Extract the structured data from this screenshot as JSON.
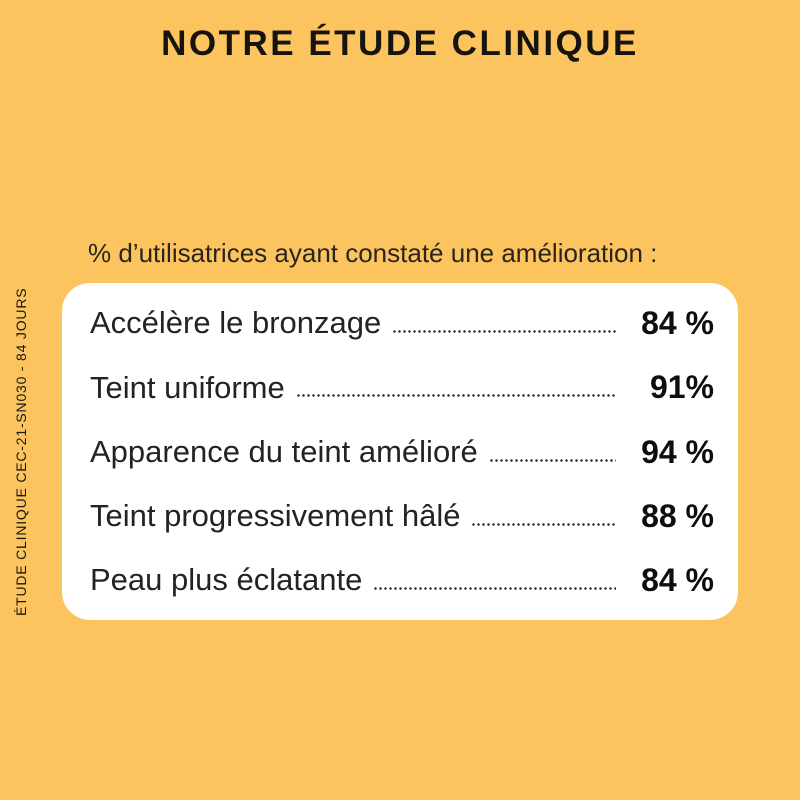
{
  "page": {
    "title": "NOTRE ÉTUDE CLINIQUE",
    "subtitle": "% d’utilisatrices ayant constaté une amélioration :",
    "side_label": "ÉTUDE CLINIQUE CEC-21-SN030 - 84 JOURS"
  },
  "rows": [
    {
      "label": "Accélère le bronzage",
      "value": "84 %"
    },
    {
      "label": "Teint uniforme",
      "value": "91%"
    },
    {
      "label": "Apparence du teint amélioré",
      "value": "94 %"
    },
    {
      "label": "Teint progressivement hâlé",
      "value": "88 %"
    },
    {
      "label": "Peau plus éclatante",
      "value": "84 %"
    }
  ],
  "chart_data": {
    "type": "table",
    "title": "NOTRE ÉTUDE CLINIQUE",
    "subtitle": "% d’utilisatrices ayant constaté une amélioration :",
    "categories": [
      "Accélère le bronzage",
      "Teint uniforme",
      "Apparence du teint amélioré",
      "Teint progressivement hâlé",
      "Peau plus éclatante"
    ],
    "values": [
      84,
      91,
      94,
      88,
      84
    ],
    "unit": "%",
    "footnote": "ÉTUDE CLINIQUE CEC-21-SN030 - 84 JOURS"
  },
  "colors": {
    "background": "#FCC45E",
    "card": "#FFFFFF",
    "text": "#1A1712"
  }
}
